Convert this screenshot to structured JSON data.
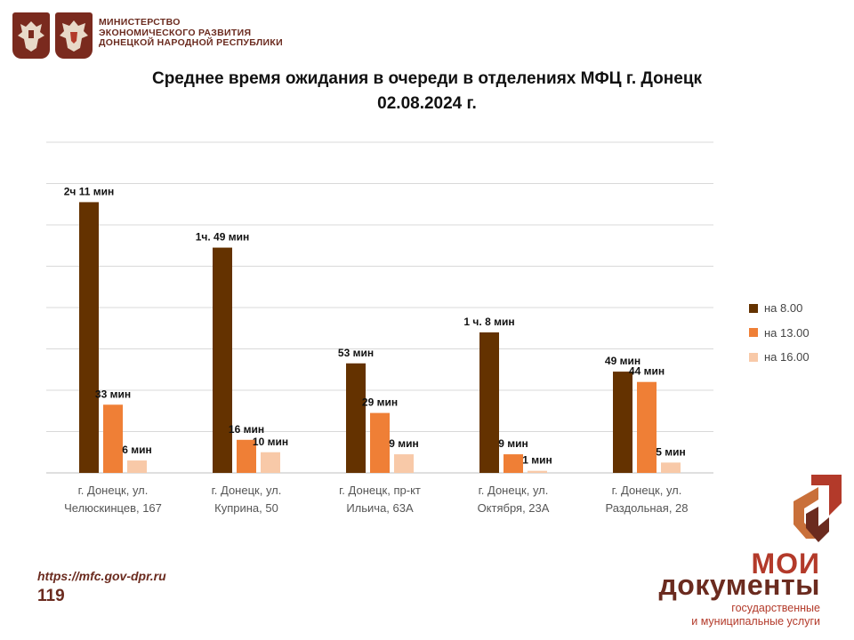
{
  "header": {
    "ministry_lines": [
      "МИНИСТЕРСТВО",
      "ЭКОНОМИЧЕСКОГО РАЗВИТИЯ",
      "ДОНЕЦКОЙ НАРОДНОЙ РЕСПУБЛИКИ"
    ]
  },
  "footer": {
    "url": "https://mfc.gov-dpr.ru",
    "page_number": "119",
    "brand_line1": "МОИ",
    "brand_line2": "документы",
    "brand_line3": "государственные",
    "brand_line4": "и муниципальные услуги"
  },
  "colors": {
    "s8": "#643200",
    "s13": "#ef7f36",
    "s16": "#f8c9a8",
    "brand_dark": "#6b2b1f",
    "brand_red": "#b33a2a",
    "grid": "#d9d9d9"
  },
  "chart_data": {
    "type": "bar",
    "title": "Среднее время ожидания в очереди в отделениях МФЦ г. Донецк",
    "subtitle": "02.08.2024 г.",
    "xlabel": "",
    "ylabel": "",
    "grid": true,
    "legend_position": "right",
    "categories": [
      [
        "г. Донецк, ул.",
        "Челюскинцев, 167"
      ],
      [
        "г. Донецк, ул.",
        "Куприна, 50"
      ],
      [
        "г. Донецк, пр-кт",
        "Ильича, 63А"
      ],
      [
        "г. Донецк, ул.",
        "Октября, 23А"
      ],
      [
        "г. Донецк, ул.",
        "Раздольная, 28"
      ]
    ],
    "series": [
      {
        "name": "на 8.00",
        "values": [
          131,
          109,
          53,
          68,
          49
        ],
        "labels": [
          "2ч 11 мин",
          "1ч. 49 мин",
          "53 мин",
          "1 ч. 8 мин",
          "49 мин"
        ]
      },
      {
        "name": "на 13.00",
        "values": [
          33,
          16,
          29,
          9,
          44
        ],
        "labels": [
          "33 мин",
          "16 мин",
          "29 мин",
          "9 мин",
          "44 мин"
        ]
      },
      {
        "name": "на 16.00",
        "values": [
          6,
          10,
          9,
          1,
          5
        ],
        "labels": [
          "6 мин",
          "10 мин",
          "9 мин",
          "1 мин",
          "5 мин"
        ]
      }
    ]
  }
}
